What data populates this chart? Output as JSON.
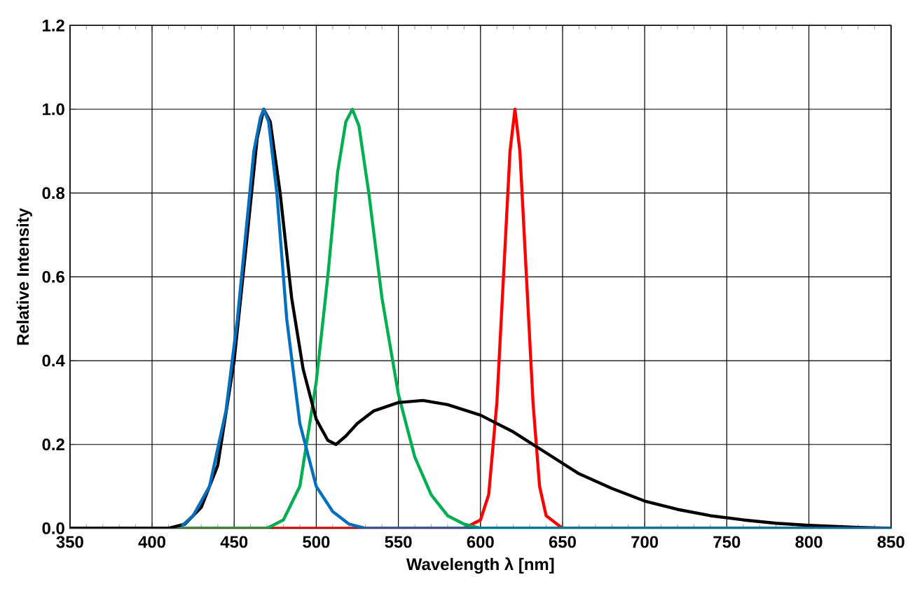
{
  "chart_data": {
    "type": "line",
    "xlabel": "Wavelength λ [nm]",
    "ylabel": "Relative Intensity",
    "xlim": [
      350,
      850
    ],
    "xticks": [
      350,
      400,
      450,
      500,
      550,
      600,
      650,
      700,
      750,
      800,
      850
    ],
    "ylim": [
      0,
      1.2
    ],
    "yticks": [
      {
        "value": 0,
        "label": "0.0"
      },
      {
        "value": 0.2,
        "label": "0.2"
      },
      {
        "value": 0.4,
        "label": "0.4"
      },
      {
        "value": 0.6,
        "label": "0.6"
      },
      {
        "value": 0.8,
        "label": "0.8"
      },
      {
        "value": 1.0,
        "label": "1.0"
      },
      {
        "value": 1.2,
        "label": "1.2"
      }
    ],
    "grid": true,
    "marker": "none",
    "line_style": "solid",
    "series": [
      {
        "color": "#ff0000",
        "x": [
          350,
          590,
          600,
          605,
          610,
          614,
          618,
          621,
          624,
          628,
          632,
          636,
          640,
          650,
          850
        ],
        "values": [
          0,
          0,
          0.02,
          0.08,
          0.3,
          0.6,
          0.9,
          1.0,
          0.9,
          0.6,
          0.3,
          0.1,
          0.03,
          0,
          0
        ]
      },
      {
        "color": "#00b050",
        "x": [
          350,
          470,
          480,
          490,
          500,
          507,
          513,
          518,
          522,
          526,
          532,
          540,
          550,
          560,
          570,
          580,
          590,
          600,
          850
        ],
        "values": [
          0,
          0,
          0.02,
          0.1,
          0.35,
          0.6,
          0.85,
          0.97,
          1.0,
          0.96,
          0.8,
          0.55,
          0.32,
          0.17,
          0.08,
          0.03,
          0.01,
          0,
          0
        ]
      },
      {
        "color": "#0070c0",
        "x": [
          418,
          425,
          435,
          445,
          452,
          457,
          462,
          466,
          468,
          471,
          476,
          482,
          490,
          500,
          510,
          520,
          530,
          850
        ],
        "values": [
          0.005,
          0.03,
          0.1,
          0.28,
          0.5,
          0.7,
          0.9,
          0.98,
          1.0,
          0.97,
          0.8,
          0.5,
          0.25,
          0.1,
          0.04,
          0.01,
          0,
          0
        ]
      },
      {
        "color": "#000000",
        "x": [
          350,
          410,
          420,
          430,
          440,
          450,
          458,
          464,
          468,
          472,
          478,
          485,
          492,
          500,
          507,
          512,
          518,
          525,
          535,
          550,
          565,
          580,
          600,
          620,
          640,
          660,
          680,
          700,
          720,
          740,
          760,
          780,
          800,
          830,
          850
        ],
        "values": [
          0,
          0,
          0.01,
          0.05,
          0.15,
          0.4,
          0.7,
          0.93,
          1.0,
          0.97,
          0.8,
          0.55,
          0.38,
          0.26,
          0.21,
          0.2,
          0.22,
          0.25,
          0.28,
          0.3,
          0.305,
          0.295,
          0.27,
          0.23,
          0.18,
          0.13,
          0.095,
          0.065,
          0.045,
          0.03,
          0.02,
          0.012,
          0.007,
          0.002,
          0
        ]
      }
    ]
  }
}
